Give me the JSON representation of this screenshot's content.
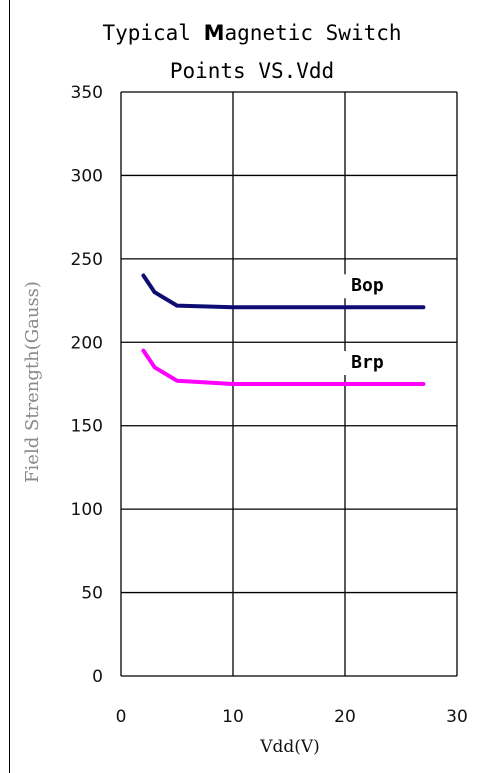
{
  "chart_data": {
    "type": "line",
    "title_line1_pre": "Typical ",
    "title_line1_bold": "M",
    "title_line1_post": "agnetic Switch",
    "title_line2": "Points VS.Vdd",
    "xlabel": "Vdd(V)",
    "ylabel": "Field Strength(Gauss)",
    "xlim": [
      0,
      30
    ],
    "ylim": [
      0,
      350
    ],
    "x_ticks": [
      "0",
      "10",
      "20",
      "30"
    ],
    "y_ticks": [
      "0",
      "50",
      "100",
      "150",
      "200",
      "250",
      "300",
      "350"
    ],
    "grid": true,
    "series": [
      {
        "name": "Bop",
        "color": "#0c0c72",
        "x": [
          2,
          3,
          5,
          10,
          15,
          20,
          27
        ],
        "y": [
          240,
          230,
          222,
          221,
          221,
          221,
          221
        ]
      },
      {
        "name": "Brp",
        "color": "#ff00ff",
        "x": [
          2,
          3,
          5,
          10,
          15,
          20,
          27
        ],
        "y": [
          195,
          185,
          177,
          175,
          175,
          175,
          175
        ]
      }
    ]
  }
}
